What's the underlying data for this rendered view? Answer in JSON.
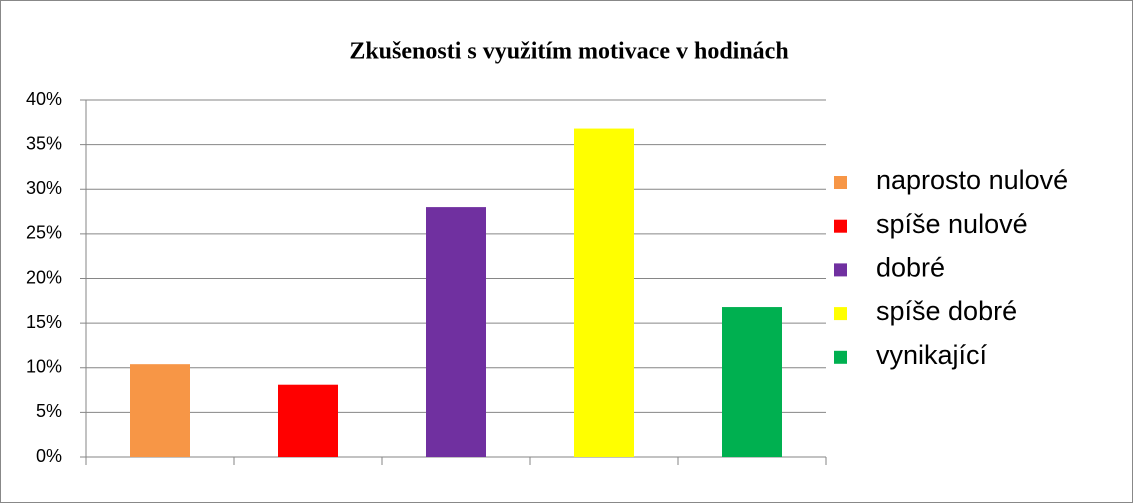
{
  "chart_data": {
    "type": "bar",
    "title": "Zkušenosti s využitím motivace v hodinách",
    "series": [
      {
        "name": "naprosto nulové",
        "color": "#f79646",
        "values": [
          10.4
        ]
      },
      {
        "name": "spíše nulové",
        "color": "#ff0000",
        "values": [
          8.1
        ]
      },
      {
        "name": "dobré",
        "color": "#7030a0",
        "values": [
          28.0
        ]
      },
      {
        "name": "spíše dobré",
        "color": "#ffff00",
        "values": [
          36.8
        ]
      },
      {
        "name": "vynikající",
        "color": "#00b050",
        "values": [
          16.8
        ]
      }
    ],
    "ylim": [
      0,
      40
    ],
    "yticks": [
      {
        "value": 0,
        "label": "0%"
      },
      {
        "value": 5,
        "label": "5%"
      },
      {
        "value": 10,
        "label": "10%"
      },
      {
        "value": 15,
        "label": "15%"
      },
      {
        "value": 20,
        "label": "20%"
      },
      {
        "value": 25,
        "label": "25%"
      },
      {
        "value": 30,
        "label": "30%"
      },
      {
        "value": 35,
        "label": "35%"
      },
      {
        "value": 40,
        "label": "40%"
      }
    ],
    "grid": true,
    "legend": "right"
  }
}
